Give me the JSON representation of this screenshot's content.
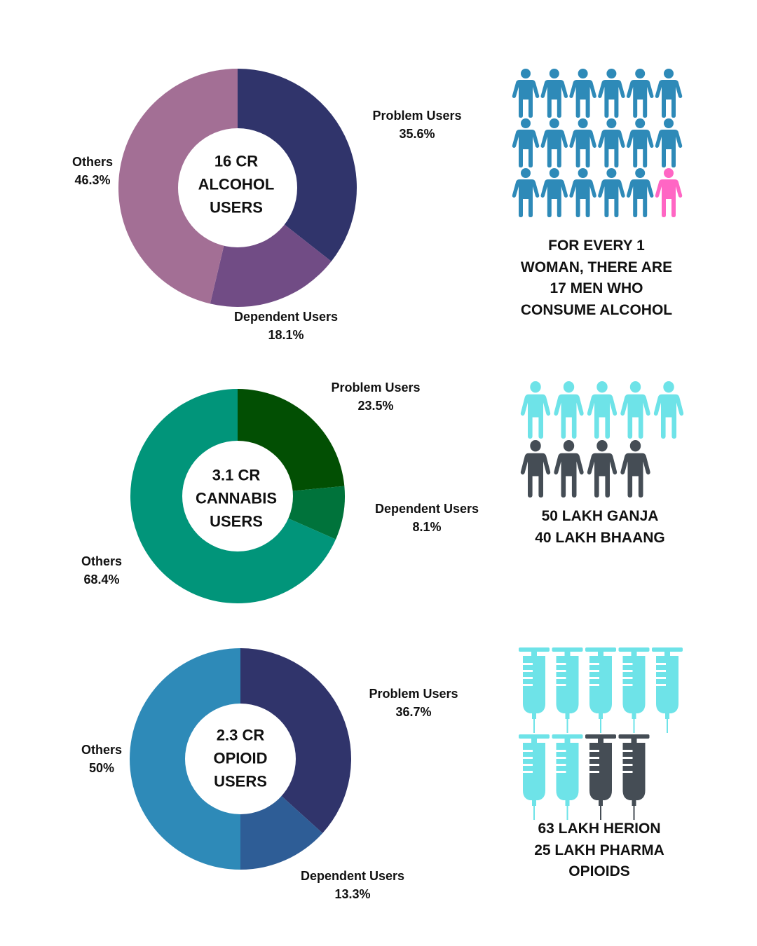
{
  "chart_data": [
    {
      "type": "pie",
      "center_label": [
        "16 CR",
        "ALCOHOL",
        "USERS"
      ],
      "slices": [
        {
          "label": "Problem Users",
          "value": 35.6,
          "value_text": "35.6%",
          "color": "#30346b"
        },
        {
          "label": "Dependent Users",
          "value": 18.1,
          "value_text": "18.1%",
          "color": "#714c85"
        },
        {
          "label": "Others",
          "value": 46.3,
          "value_text": "46.3%",
          "color": "#a36f95"
        }
      ]
    },
    {
      "type": "pie",
      "center_label": [
        "3.1 CR",
        "CANNABIS",
        "USERS"
      ],
      "slices": [
        {
          "label": "Problem Users",
          "value": 23.5,
          "value_text": "23.5%",
          "color": "#024f03"
        },
        {
          "label": "Dependent Users",
          "value": 8.1,
          "value_text": "8.1%",
          "color": "#00733b"
        },
        {
          "label": "Others",
          "value": 68.4,
          "value_text": "68.4%",
          "color": "#01957a"
        }
      ]
    },
    {
      "type": "pie",
      "center_label": [
        "2.3 CR",
        "OPIOID",
        "USERS"
      ],
      "slices": [
        {
          "label": "Problem Users",
          "value": 36.7,
          "value_text": "36.7%",
          "color": "#30346b"
        },
        {
          "label": "Dependent Users",
          "value": 13.3,
          "value_text": "13.3%",
          "color": "#2e5d96"
        },
        {
          "label": "Others",
          "value": 50,
          "value_text": "50%",
          "color": "#2e8ab8"
        }
      ]
    }
  ],
  "panels": [
    {
      "icon": "person-icon",
      "counts": [
        {
          "value": 17,
          "color": "#2e8ab8"
        },
        {
          "value": 1,
          "color": "#ff66c4"
        }
      ],
      "caption": [
        "FOR EVERY 1",
        "WOMAN, THERE ARE",
        "17 MEN WHO",
        "CONSUME ALCOHOL"
      ]
    },
    {
      "icon": "person-icon",
      "counts": [
        {
          "value": 5,
          "color": "#6ee3e8"
        },
        {
          "value": 4,
          "color": "#454d55"
        }
      ],
      "caption": [
        "50 LAKH GANJA",
        "40 LAKH BHAANG"
      ]
    },
    {
      "icon": "syringe-icon",
      "counts": [
        {
          "value": 7,
          "color": "#6ee3e8"
        },
        {
          "value": 2,
          "color": "#454d55"
        }
      ],
      "caption": [
        "63 LAKH HERION",
        "25 LAKH PHARMA",
        "OPIOIDS"
      ]
    }
  ]
}
